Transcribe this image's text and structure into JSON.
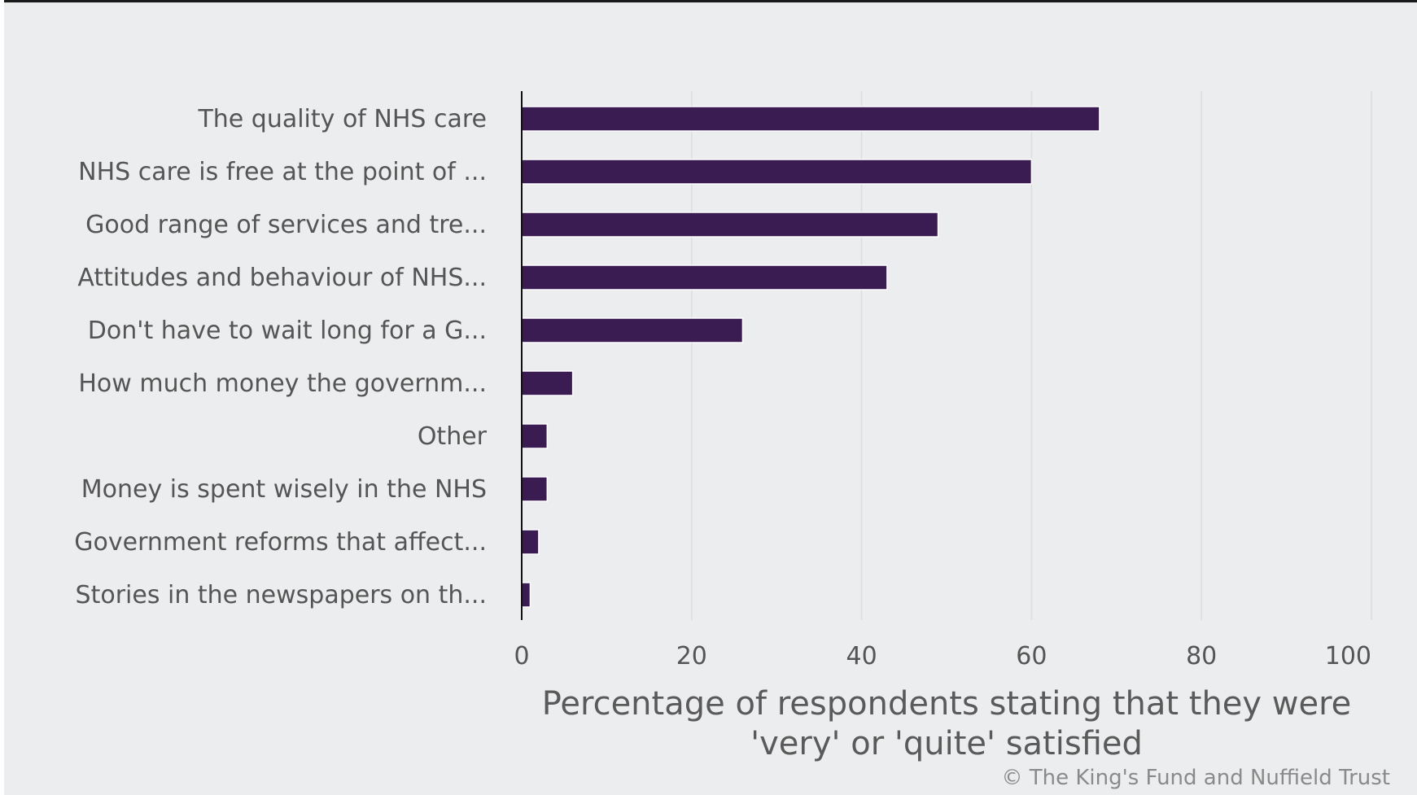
{
  "chart_data": {
    "type": "bar",
    "orientation": "horizontal",
    "categories": [
      "The quality of NHS care",
      "NHS care is free at the point of ...",
      "Good range of services and tre...",
      "Attitudes and behaviour of NHS...",
      "Don't have to wait long for a G...",
      "How much money the governm...",
      "Other",
      "Money is spent wisely in the NHS",
      "Government reforms that affect...",
      "Stories in the newspapers on th..."
    ],
    "values": [
      68,
      60,
      49,
      43,
      26,
      6,
      3,
      3,
      2,
      1
    ],
    "xlim": [
      0,
      100
    ],
    "xticks": [
      0,
      20,
      40,
      60,
      80,
      100
    ],
    "xlabel_lines": [
      "Percentage of respondents stating that they were",
      "'very' or 'quite' satisfied"
    ],
    "grid": true,
    "bar_color": "#3b1c52",
    "background_color": "#ecedee"
  },
  "credit": "© The King's Fund and Nuffield Trust"
}
